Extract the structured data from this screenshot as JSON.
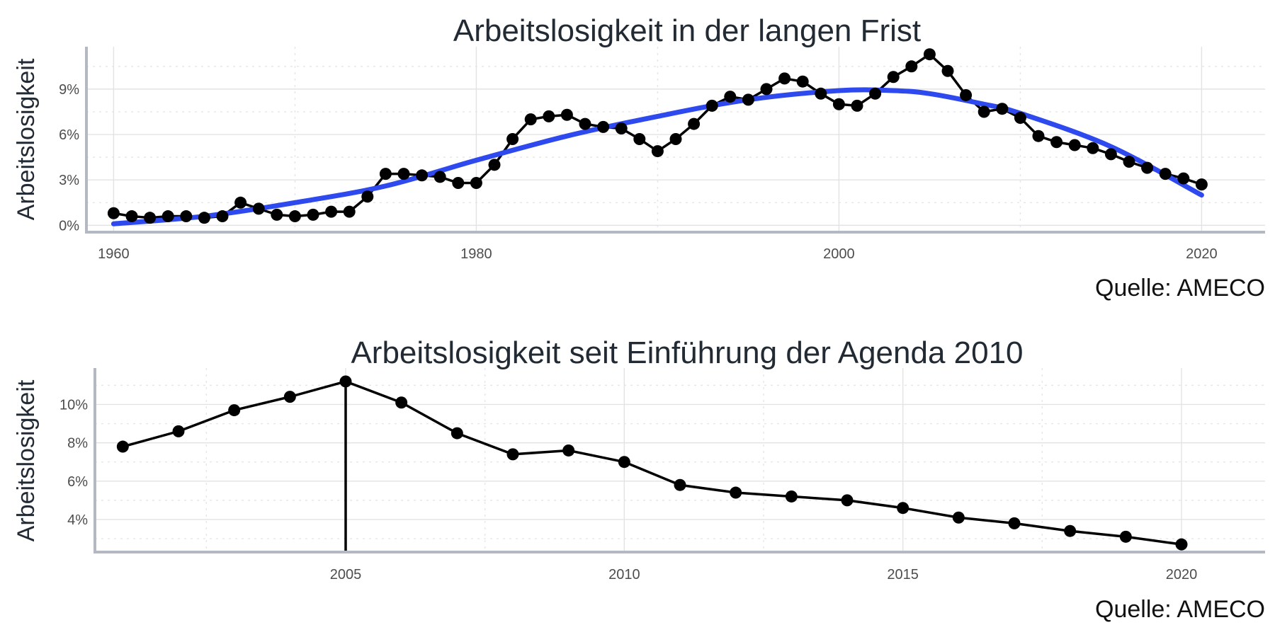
{
  "chart_data": [
    {
      "type": "line",
      "title": "Arbeitslosigkeit in der langen Frist",
      "ylabel": "Arbeitslosigkeit",
      "caption": "Quelle: AMECO",
      "xlim": [
        1958.5,
        2023.5
      ],
      "ylim": [
        -0.45,
        11.8
      ],
      "x_ticks": [
        "1960",
        "1980",
        "2000",
        "2020"
      ],
      "y_ticks": [
        "0%",
        "3%",
        "6%",
        "9%"
      ],
      "grid": "on",
      "series": [
        {
          "style": "points-and-line",
          "color": "#000000",
          "x": [
            1960,
            1961,
            1962,
            1963,
            1964,
            1965,
            1966,
            1967,
            1968,
            1969,
            1970,
            1971,
            1972,
            1973,
            1974,
            1975,
            1976,
            1977,
            1978,
            1979,
            1980,
            1981,
            1982,
            1983,
            1984,
            1985,
            1986,
            1987,
            1988,
            1989,
            1990,
            1991,
            1992,
            1993,
            1994,
            1995,
            1996,
            1997,
            1998,
            1999,
            2000,
            2001,
            2002,
            2003,
            2004,
            2005,
            2006,
            2007,
            2008,
            2009,
            2010,
            2011,
            2012,
            2013,
            2014,
            2015,
            2016,
            2017,
            2018,
            2019,
            2020
          ],
          "y": [
            0.8,
            0.6,
            0.5,
            0.6,
            0.6,
            0.5,
            0.6,
            1.5,
            1.1,
            0.7,
            0.6,
            0.7,
            0.9,
            0.9,
            1.9,
            3.4,
            3.4,
            3.3,
            3.2,
            2.8,
            2.8,
            4.0,
            5.7,
            7.0,
            7.2,
            7.3,
            6.7,
            6.5,
            6.4,
            5.7,
            4.9,
            5.7,
            6.7,
            7.9,
            8.5,
            8.3,
            9.0,
            9.7,
            9.5,
            8.7,
            8.0,
            7.9,
            8.7,
            9.8,
            10.5,
            11.3,
            10.2,
            8.6,
            7.5,
            7.7,
            7.1,
            5.9,
            5.5,
            5.3,
            5.1,
            4.7,
            4.2,
            3.8,
            3.4,
            3.1,
            2.7
          ]
        },
        {
          "style": "smooth-trend",
          "color": "#2e4aef",
          "x": [
            1960,
            1965,
            1970,
            1975,
            1980,
            1985,
            1990,
            1995,
            2000,
            2003,
            2005,
            2008,
            2010,
            2015,
            2020
          ],
          "y": [
            0.1,
            0.6,
            1.5,
            2.6,
            4.3,
            5.9,
            7.2,
            8.3,
            8.9,
            8.9,
            8.7,
            8.0,
            7.4,
            5.2,
            2.0
          ]
        }
      ]
    },
    {
      "type": "line",
      "title": "Arbeitslosigkeit seit Einführung der Agenda 2010",
      "ylabel": "Arbeitslosigkeit",
      "caption": "Quelle: AMECO",
      "xlim": [
        2000.5,
        2021.5
      ],
      "ylim": [
        2.3,
        11.9
      ],
      "x_ticks": [
        "2005",
        "2010",
        "2015",
        "2020"
      ],
      "y_ticks": [
        "4%",
        "6%",
        "8%",
        "10%"
      ],
      "grid": "on",
      "vertical_line_x": 2005,
      "series": [
        {
          "style": "points-and-line",
          "color": "#000000",
          "x": [
            2001,
            2002,
            2003,
            2004,
            2005,
            2006,
            2007,
            2008,
            2009,
            2010,
            2011,
            2012,
            2013,
            2014,
            2015,
            2016,
            2017,
            2018,
            2019,
            2020
          ],
          "y": [
            7.8,
            8.6,
            9.7,
            10.4,
            11.2,
            10.1,
            8.5,
            7.4,
            7.6,
            7.0,
            5.8,
            5.4,
            5.2,
            5.0,
            4.6,
            4.1,
            3.8,
            3.4,
            3.1,
            2.7
          ]
        }
      ]
    }
  ]
}
